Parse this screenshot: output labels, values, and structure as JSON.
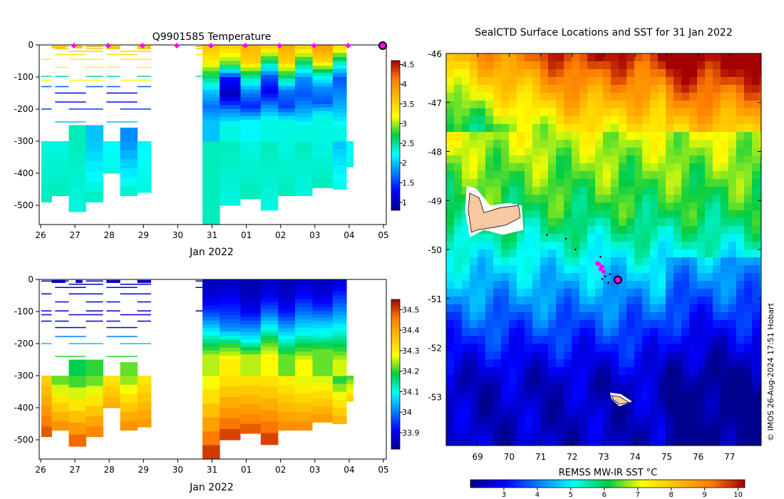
{
  "chart_data": [
    {
      "type": "heatmap",
      "title": "Q9901585  Temperature",
      "xlabel": "Jan 2022",
      "ylabel": "",
      "x_ticks": [
        "26",
        "27",
        "28",
        "29",
        "30",
        "31",
        "01",
        "02",
        "03",
        "04",
        "05"
      ],
      "y_ticks": [
        0,
        -100,
        -200,
        -300,
        -400,
        -500
      ],
      "ylim": [
        -560,
        0
      ],
      "colorbar": {
        "ticks": [
          1,
          1.5,
          2,
          2.5,
          3,
          3.5,
          4,
          4.5
        ],
        "range": [
          0.8,
          4.6
        ],
        "colormap": "jet"
      },
      "markers": {
        "color": "#ff00ff",
        "days": [
          1,
          2,
          3,
          4,
          5,
          6,
          7,
          8,
          9
        ]
      },
      "deep_profiles": [
        {
          "x0": 0.0,
          "x1": 0.3,
          "bottom": -490,
          "top_color": 2.3,
          "bottom_color": 2.4
        },
        {
          "x0": 0.3,
          "x1": 0.8,
          "bottom": -470,
          "top_color": 2.3,
          "bottom_color": 2.4
        },
        {
          "x0": 0.8,
          "x1": 1.3,
          "bottom": -520,
          "top_color": 2.4,
          "bottom_color": 2.3
        },
        {
          "x0": 1.3,
          "x1": 1.8,
          "bottom": -490,
          "top_color": 2.0,
          "bottom_color": 2.4
        },
        {
          "x0": 1.8,
          "x1": 2.3,
          "bottom": -400,
          "top_color": 2.2,
          "bottom_color": 2.3
        },
        {
          "x0": 2.3,
          "x1": 2.8,
          "bottom": -470,
          "top_color": 1.8,
          "bottom_color": 2.4
        },
        {
          "x0": 2.8,
          "x1": 3.2,
          "bottom": -460,
          "top_color": 2.2,
          "bottom_color": 2.3
        },
        {
          "x0": 4.7,
          "x1": 5.2,
          "bottom": -560,
          "top_color": 2.4,
          "bottom_color": 2.4
        },
        {
          "x0": 5.2,
          "x1": 5.8,
          "bottom": -500,
          "top_color": 2.4,
          "bottom_color": 2.3
        },
        {
          "x0": 5.8,
          "x1": 6.4,
          "bottom": -480,
          "top_color": 2.3,
          "bottom_color": 2.4
        },
        {
          "x0": 6.4,
          "x1": 6.9,
          "bottom": -515,
          "top_color": 2.4,
          "bottom_color": 2.3
        },
        {
          "x0": 6.9,
          "x1": 7.4,
          "bottom": -470,
          "top_color": 2.3,
          "bottom_color": 2.4
        },
        {
          "x0": 7.4,
          "x1": 7.9,
          "bottom": -470,
          "top_color": 2.4,
          "bottom_color": 2.3
        },
        {
          "x0": 7.9,
          "x1": 8.5,
          "bottom": -445,
          "top_color": 2.3,
          "bottom_color": 2.4
        },
        {
          "x0": 8.5,
          "x1": 8.9,
          "bottom": -450,
          "top_color": 2.0,
          "bottom_color": 2.3
        },
        {
          "x0": 8.9,
          "x1": 9.1,
          "bottom": -380,
          "top_color": 2.2,
          "bottom_color": 2.3
        }
      ],
      "full_profiles": [
        {
          "x0": 4.7,
          "x1": 5.2,
          "bottom": -280,
          "colors": [
            3.6,
            3.3,
            2.6,
            2.0,
            1.7,
            2.0
          ]
        },
        {
          "x0": 5.8,
          "x1": 6.4,
          "bottom": -280,
          "colors": [
            3.7,
            3.5,
            2.5,
            1.8,
            1.4,
            2.2
          ]
        },
        {
          "x0": 6.9,
          "x1": 7.4,
          "bottom": -280,
          "colors": [
            3.8,
            3.5,
            2.6,
            1.7,
            1.5,
            2.3
          ]
        },
        {
          "x0": 7.9,
          "x1": 8.5,
          "bottom": -260,
          "colors": [
            3.9,
            3.5,
            2.4,
            1.8,
            1.6,
            2.3
          ]
        }
      ],
      "pale_profiles": [
        {
          "x0": 5.2,
          "x1": 5.8,
          "bottom": -300,
          "colors": [
            3.5,
            2.9,
            1.3,
            1.0,
            1.8,
            2.3
          ]
        },
        {
          "x0": 6.4,
          "x1": 6.9,
          "bottom": -280,
          "colors": [
            3.5,
            2.6,
            1.6,
            1.2,
            1.8,
            2.3
          ]
        },
        {
          "x0": 7.4,
          "x1": 7.9,
          "bottom": -300,
          "colors": [
            3.5,
            2.6,
            1.8,
            1.6,
            1.9,
            2.3
          ]
        },
        {
          "x0": 8.5,
          "x1": 8.9,
          "bottom": -300,
          "colors": [
            3.4,
            2.4,
            1.6,
            1.8,
            2.0,
            2.3
          ]
        }
      ]
    },
    {
      "type": "heatmap",
      "title": "",
      "xlabel": "Jan 2022",
      "ylabel": "",
      "x_ticks": [
        "26",
        "27",
        "28",
        "29",
        "30",
        "31",
        "01",
        "02",
        "03",
        "04",
        "05"
      ],
      "y_ticks": [
        0,
        -100,
        -200,
        -300,
        -400,
        -500
      ],
      "ylim": [
        -560,
        0
      ],
      "colorbar": {
        "ticks": [
          33.9,
          34,
          34.1,
          34.2,
          34.3,
          34.4,
          34.5
        ],
        "range": [
          33.82,
          34.55
        ],
        "colormap": "jet"
      },
      "deep_profiles": [
        {
          "x0": 0.0,
          "x1": 0.3,
          "bottom": -490,
          "top_color": 34.33,
          "bottom_color": 34.5
        },
        {
          "x0": 0.3,
          "x1": 0.8,
          "bottom": -470,
          "top_color": 34.2,
          "bottom_color": 34.45
        },
        {
          "x0": 0.8,
          "x1": 1.3,
          "bottom": -520,
          "top_color": 34.18,
          "bottom_color": 34.5
        },
        {
          "x0": 1.3,
          "x1": 1.8,
          "bottom": -490,
          "top_color": 34.2,
          "bottom_color": 34.47
        },
        {
          "x0": 1.8,
          "x1": 2.3,
          "bottom": -400,
          "top_color": 34.3,
          "bottom_color": 34.4
        },
        {
          "x0": 2.3,
          "x1": 2.8,
          "bottom": -470,
          "top_color": 34.22,
          "bottom_color": 34.45
        },
        {
          "x0": 2.8,
          "x1": 3.2,
          "bottom": -460,
          "top_color": 34.3,
          "bottom_color": 34.43
        },
        {
          "x0": 4.7,
          "x1": 5.2,
          "bottom": -560,
          "top_color": 34.25,
          "bottom_color": 34.53
        },
        {
          "x0": 5.2,
          "x1": 5.8,
          "bottom": -500,
          "top_color": 34.3,
          "bottom_color": 34.52
        },
        {
          "x0": 5.8,
          "x1": 6.4,
          "bottom": -480,
          "top_color": 34.3,
          "bottom_color": 34.5
        },
        {
          "x0": 6.4,
          "x1": 6.9,
          "bottom": -515,
          "top_color": 34.3,
          "bottom_color": 34.52
        },
        {
          "x0": 6.9,
          "x1": 7.4,
          "bottom": -470,
          "top_color": 34.28,
          "bottom_color": 34.45
        },
        {
          "x0": 7.4,
          "x1": 7.9,
          "bottom": -470,
          "top_color": 34.25,
          "bottom_color": 34.45
        },
        {
          "x0": 7.9,
          "x1": 8.5,
          "bottom": -445,
          "top_color": 34.25,
          "bottom_color": 34.43
        },
        {
          "x0": 8.5,
          "x1": 8.9,
          "bottom": -450,
          "top_color": 34.18,
          "bottom_color": 34.4
        },
        {
          "x0": 8.9,
          "x1": 9.1,
          "bottom": -380,
          "top_color": 34.2,
          "bottom_color": 34.35
        }
      ],
      "full_profiles": [
        {
          "x0": 4.7,
          "x1": 5.2,
          "bottom": -280,
          "colors": [
            33.85,
            33.88,
            33.95,
            34.05,
            34.15,
            34.25
          ]
        },
        {
          "x0": 5.8,
          "x1": 6.4,
          "bottom": -280,
          "colors": [
            33.85,
            33.86,
            33.9,
            34.0,
            34.1,
            34.25
          ]
        },
        {
          "x0": 6.9,
          "x1": 7.4,
          "bottom": -280,
          "colors": [
            33.85,
            33.87,
            33.92,
            34.02,
            34.12,
            34.22
          ]
        },
        {
          "x0": 7.9,
          "x1": 8.5,
          "bottom": -260,
          "colors": [
            33.86,
            33.88,
            33.95,
            34.05,
            34.12,
            34.22
          ]
        }
      ],
      "pale_profiles": [
        {
          "x0": 5.2,
          "x1": 5.8,
          "bottom": -300,
          "colors": [
            33.86,
            33.9,
            33.95,
            34.02,
            34.2,
            34.3
          ]
        },
        {
          "x0": 6.4,
          "x1": 6.9,
          "bottom": -280,
          "colors": [
            33.86,
            33.9,
            33.98,
            34.08,
            34.2,
            34.28
          ]
        },
        {
          "x0": 7.4,
          "x1": 7.9,
          "bottom": -300,
          "colors": [
            33.87,
            33.92,
            34.0,
            34.08,
            34.18,
            34.28
          ]
        },
        {
          "x0": 8.5,
          "x1": 8.9,
          "bottom": -300,
          "colors": [
            33.88,
            33.95,
            34.02,
            34.1,
            34.18,
            34.26
          ]
        }
      ]
    },
    {
      "type": "heatmap",
      "title": "SealCTD Surface Locations and SST for 31 Jan 2022",
      "xlabel": "",
      "ylabel": "",
      "x_ticks": [
        "69",
        "70",
        "71",
        "72",
        "73",
        "74",
        "75",
        "76",
        "77"
      ],
      "y_ticks": [
        "-46",
        "-47",
        "-48",
        "-49",
        "-50",
        "-51",
        "-52",
        "-53"
      ],
      "xlim": [
        68,
        78
      ],
      "ylim": [
        -54,
        -46
      ],
      "colorbar": {
        "label": "REMSS MW-IR SST °C",
        "ticks": [
          3,
          4,
          5,
          6,
          7,
          8,
          9,
          10
        ],
        "range": [
          2,
          10.2
        ],
        "colormap": "jet"
      },
      "land_color": "#f8c8a0",
      "track_points": [
        {
          "lon": 72.85,
          "lat": -50.3
        },
        {
          "lon": 72.95,
          "lat": -50.35
        },
        {
          "lon": 72.8,
          "lat": -50.28
        },
        {
          "lon": 73.0,
          "lat": -50.45
        },
        {
          "lon": 72.9,
          "lat": -50.4
        }
      ],
      "scatter_points": [
        {
          "lon": 71.2,
          "lat": -49.7
        },
        {
          "lon": 71.8,
          "lat": -49.78
        },
        {
          "lon": 72.1,
          "lat": -50.0
        },
        {
          "lon": 72.9,
          "lat": -50.15
        },
        {
          "lon": 73.05,
          "lat": -50.55
        },
        {
          "lon": 73.15,
          "lat": -50.68
        },
        {
          "lon": 72.95,
          "lat": -50.6
        },
        {
          "lon": 73.2,
          "lat": -50.5
        }
      ],
      "current_position": {
        "lon": 73.45,
        "lat": -50.62
      }
    }
  ],
  "credit": "© IMOS 26-Aug-2024 17:51 Hobart"
}
